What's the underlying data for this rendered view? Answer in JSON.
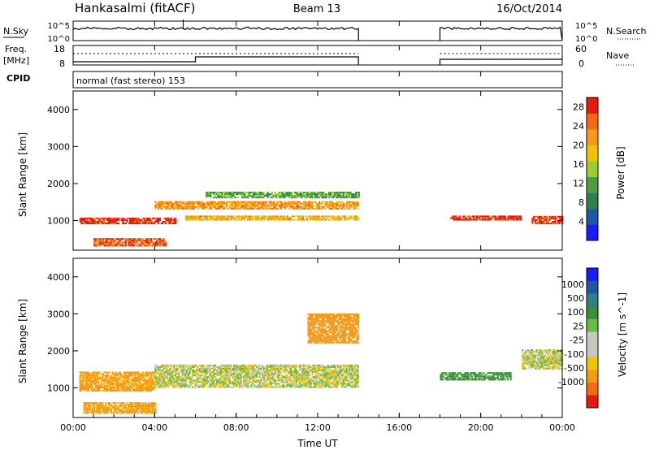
{
  "header": {
    "radar_title": "Hankasalmi (fitACF)",
    "beam_label": "Beam 13",
    "date_label": "16/Oct/2014"
  },
  "strip_panels": {
    "noise": {
      "left_label": "N.Sky",
      "right_label": "N.Search",
      "left_ticks": [
        "10^5",
        "10^0"
      ],
      "right_ticks": [
        "10^5",
        "10^0"
      ]
    },
    "freq": {
      "left_label_line1": "Freq.",
      "left_label_line2": "[MHz]",
      "right_label": "Nave",
      "left_ticks": [
        "18",
        "8"
      ],
      "right_ticks": [
        "60",
        "0"
      ]
    },
    "cpid": {
      "left_label": "CPID",
      "text": "normal (fast stereo) 153"
    }
  },
  "x_axis": {
    "label": "Time UT",
    "ticks": [
      "00:00",
      "04:00",
      "08:00",
      "12:00",
      "16:00",
      "20:00",
      "00:00"
    ]
  },
  "colors": {
    "power": [
      "#1a1aff",
      "#1f56a8",
      "#2e7f4a",
      "#4d9e42",
      "#9acd32",
      "#f2c200",
      "#f49a16",
      "#f46a10",
      "#e81a10"
    ],
    "velocity": [
      "#e81a10",
      "#f46a10",
      "#f49a16",
      "#f2c200",
      "#c8c8c0",
      "#c8c8c0",
      "#66bb44",
      "#3a8f3a",
      "#2e7f7f",
      "#1f56a8",
      "#1a1aff"
    ]
  },
  "chart_data": [
    {
      "type": "heatmap",
      "name": "power",
      "xlabel": "",
      "ylabel": "Slant Range [km]",
      "x_range": [
        "00:00",
        "24:00"
      ],
      "ylim": [
        200,
        4500
      ],
      "y_ticks": [
        1000,
        2000,
        3000,
        4000
      ],
      "colorbar_label": "Power [dB]",
      "colorbar_ticks": [
        4,
        8,
        12,
        16,
        20,
        24,
        28
      ],
      "colorbar_range": [
        0,
        30
      ],
      "data_gaps_hours": [
        [
          14.0,
          18.0
        ]
      ],
      "features": [
        {
          "start_h": 0.3,
          "end_h": 5.0,
          "range_start_km": 900,
          "range_end_km": 1050,
          "power_db": 28
        },
        {
          "start_h": 1.0,
          "end_h": 4.5,
          "range_start_km": 300,
          "range_end_km": 500,
          "power_db": 26
        },
        {
          "start_h": 4.0,
          "end_h": 14.0,
          "range_start_km": 1300,
          "range_end_km": 1500,
          "power_db": 22
        },
        {
          "start_h": 5.5,
          "end_h": 14.0,
          "range_start_km": 1000,
          "range_end_km": 1100,
          "power_db": 20
        },
        {
          "start_h": 6.5,
          "end_h": 14.0,
          "range_start_km": 1600,
          "range_end_km": 1750,
          "power_db": 12
        },
        {
          "start_h": 18.5,
          "end_h": 22.0,
          "range_start_km": 1000,
          "range_end_km": 1100,
          "power_db": 28
        },
        {
          "start_h": 22.5,
          "end_h": 24.0,
          "range_start_km": 900,
          "range_end_km": 1100,
          "power_db": 28
        }
      ]
    },
    {
      "type": "heatmap",
      "name": "velocity",
      "xlabel": "Time UT",
      "ylabel": "Slant Range [km]",
      "x_range": [
        "00:00",
        "24:00"
      ],
      "ylim": [
        200,
        4500
      ],
      "y_ticks": [
        1000,
        2000,
        3000,
        4000
      ],
      "colorbar_label": "Velocity [m s^-1]",
      "colorbar_ticks": [
        -1000,
        -500,
        -100,
        -25,
        25,
        100,
        500,
        1000
      ],
      "data_gaps_hours": [
        [
          14.0,
          18.0
        ]
      ],
      "features": [
        {
          "start_h": 0.3,
          "end_h": 4.0,
          "range_start_km": 900,
          "range_end_km": 1400,
          "velocity": -150
        },
        {
          "start_h": 0.5,
          "end_h": 4.0,
          "range_start_km": 300,
          "range_end_km": 600,
          "velocity": -150
        },
        {
          "start_h": 4.0,
          "end_h": 14.0,
          "range_start_km": 1000,
          "range_end_km": 1600,
          "velocity": 0
        },
        {
          "start_h": 11.5,
          "end_h": 14.0,
          "range_start_km": 2200,
          "range_end_km": 3000,
          "velocity": -300
        },
        {
          "start_h": 18.0,
          "end_h": 21.5,
          "range_start_km": 1200,
          "range_end_km": 1400,
          "velocity": 150
        },
        {
          "start_h": 22.0,
          "end_h": 24.0,
          "range_start_km": 1500,
          "range_end_km": 2000,
          "velocity": 0
        }
      ]
    }
  ]
}
